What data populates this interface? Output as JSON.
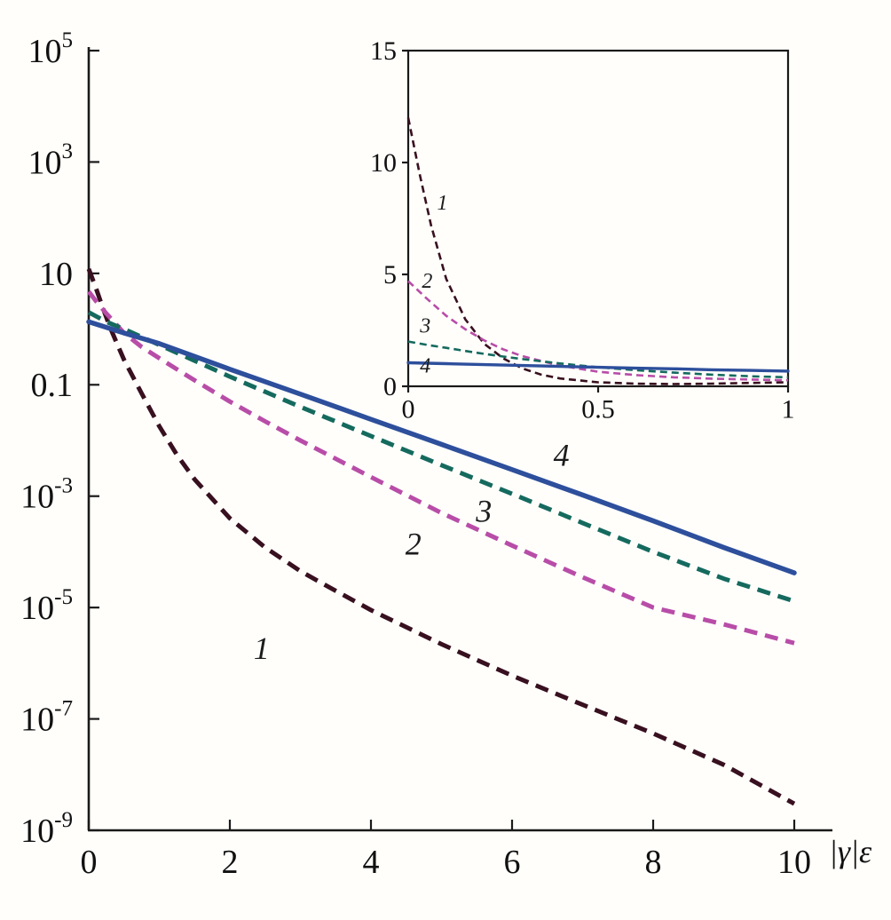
{
  "figure": {
    "background": "#fffefb",
    "axis_color": "#1a1a1a",
    "xlabel": "|γ|ε"
  },
  "chart_data": [
    {
      "name": "main",
      "type": "line",
      "title": "",
      "xlabel": "|γ|ε",
      "ylabel": "",
      "x_scale": "linear",
      "y_scale": "log",
      "xlim": [
        0,
        10
      ],
      "ylim": [
        1e-09,
        100000.0
      ],
      "grid": false,
      "legend": "none (curves labeled by numbers 1-4)",
      "x_ticks": [
        0,
        2,
        4,
        6,
        8,
        10
      ],
      "x_tick_labels": [
        "0",
        "2",
        "4",
        "6",
        "8",
        "10"
      ],
      "y_ticks": [
        100000.0,
        1000.0,
        10,
        0.1,
        0.001,
        1e-05,
        1e-07,
        1e-09
      ],
      "y_tick_labels": [
        "10^5",
        "10^3",
        "10",
        "0.1",
        "10^-3",
        "10^-5",
        "10^-7",
        "10^-9"
      ],
      "series": [
        {
          "name": "1",
          "color": "#38101f",
          "dash": true,
          "x": [
            0,
            0.1,
            0.2,
            0.3,
            0.4,
            0.5,
            0.75,
            1,
            1.25,
            1.5,
            2,
            2.5,
            3,
            3.5,
            4,
            5,
            6,
            7,
            8,
            9,
            10
          ],
          "y": [
            12,
            5.5,
            2.4,
            1.1,
            0.55,
            0.28,
            0.07,
            0.018,
            0.0055,
            0.002,
            0.0004,
            0.00012,
            4.5e-05,
            2e-05,
            9e-06,
            2.2e-06,
            6e-07,
            1.8e-07,
            5.5e-08,
            1.5e-08,
            3e-09
          ]
        },
        {
          "name": "2",
          "color": "#b84da8",
          "dash": true,
          "x": [
            0,
            0.1,
            0.25,
            0.5,
            0.75,
            1,
            1.5,
            2,
            2.5,
            3,
            4,
            5,
            6,
            7,
            8,
            9,
            10
          ],
          "y": [
            4.7,
            3.2,
            1.9,
            0.85,
            0.48,
            0.3,
            0.12,
            0.05,
            0.022,
            0.01,
            0.0022,
            0.0005,
            0.00013,
            3.5e-05,
            1e-05,
            5e-06,
            2.3e-06
          ]
        },
        {
          "name": "3",
          "color": "#156a5e",
          "dash": true,
          "x": [
            0,
            0.25,
            0.5,
            1,
            1.5,
            2,
            3,
            4,
            5,
            6,
            7,
            8,
            9,
            10
          ],
          "y": [
            2.0,
            1.35,
            1.0,
            0.52,
            0.27,
            0.14,
            0.04,
            0.012,
            0.0036,
            0.0011,
            0.00033,
            0.0001,
            3.3e-05,
            1.3e-05
          ]
        },
        {
          "name": "4",
          "color": "#2d4f9c",
          "dash": false,
          "x": [
            0,
            0.5,
            1,
            2,
            3,
            4,
            5,
            6,
            7,
            8,
            9,
            10
          ],
          "y": [
            1.35,
            0.85,
            0.55,
            0.19,
            0.068,
            0.024,
            0.0085,
            0.003,
            0.00105,
            0.00036,
            0.00012,
            4.2e-05
          ]
        }
      ],
      "annotations": [
        {
          "text": "1",
          "x": 2.45,
          "y": 1.2e-06
        },
        {
          "text": "2",
          "x": 4.6,
          "y": 9e-05
        },
        {
          "text": "3",
          "x": 5.6,
          "y": 0.00035
        },
        {
          "text": "4",
          "x": 6.7,
          "y": 0.0035
        }
      ]
    },
    {
      "name": "inset",
      "type": "line",
      "title": "",
      "xlabel": "",
      "ylabel": "",
      "x_scale": "linear",
      "y_scale": "linear",
      "xlim": [
        0,
        1
      ],
      "ylim": [
        0,
        15
      ],
      "grid": false,
      "legend": "none (curves labeled by numbers 1-4)",
      "x_ticks": [
        0,
        0.5,
        1
      ],
      "x_tick_labels": [
        "0",
        "0.5",
        "1"
      ],
      "y_ticks": [
        0,
        5,
        10,
        15
      ],
      "y_tick_labels": [
        "0",
        "5",
        "10",
        "15"
      ],
      "series": [
        {
          "name": "1",
          "color": "#38101f",
          "dash": true,
          "x": [
            0,
            0.03,
            0.06,
            0.1,
            0.15,
            0.2,
            0.25,
            0.3,
            0.35,
            0.4,
            0.5,
            0.6,
            0.7,
            0.8,
            0.9,
            1
          ],
          "y": [
            12,
            9.5,
            7.2,
            4.8,
            3.0,
            1.9,
            1.25,
            0.8,
            0.52,
            0.35,
            0.18,
            0.12,
            0.1,
            0.12,
            0.15,
            0.18
          ]
        },
        {
          "name": "2",
          "color": "#b84da8",
          "dash": true,
          "x": [
            0,
            0.05,
            0.1,
            0.15,
            0.2,
            0.25,
            0.3,
            0.4,
            0.5,
            0.6,
            0.7,
            0.8,
            0.9,
            1
          ],
          "y": [
            4.7,
            3.9,
            3.15,
            2.55,
            2.05,
            1.65,
            1.35,
            0.92,
            0.65,
            0.5,
            0.4,
            0.34,
            0.3,
            0.27
          ]
        },
        {
          "name": "3",
          "color": "#156a5e",
          "dash": true,
          "x": [
            0,
            0.05,
            0.1,
            0.15,
            0.2,
            0.25,
            0.3,
            0.4,
            0.5,
            0.6,
            0.7,
            0.8,
            0.9,
            1
          ],
          "y": [
            2.0,
            1.85,
            1.72,
            1.58,
            1.45,
            1.33,
            1.22,
            1.02,
            0.85,
            0.72,
            0.61,
            0.52,
            0.45,
            0.4
          ]
        },
        {
          "name": "4",
          "color": "#2d4f9c",
          "dash": false,
          "x": [
            0,
            0.05,
            0.1,
            0.15,
            0.2,
            0.25,
            0.3,
            0.4,
            0.5,
            0.6,
            0.7,
            0.8,
            0.9,
            1
          ],
          "y": [
            1.05,
            1.03,
            1.01,
            0.99,
            0.97,
            0.95,
            0.93,
            0.89,
            0.85,
            0.81,
            0.78,
            0.74,
            0.71,
            0.68
          ]
        }
      ],
      "annotations": [
        {
          "text": "1",
          "x": 0.09,
          "y": 7.9
        },
        {
          "text": "2",
          "x": 0.05,
          "y": 4.4
        },
        {
          "text": "3",
          "x": 0.045,
          "y": 2.4
        },
        {
          "text": "4",
          "x": 0.045,
          "y": 0.62
        }
      ]
    }
  ]
}
